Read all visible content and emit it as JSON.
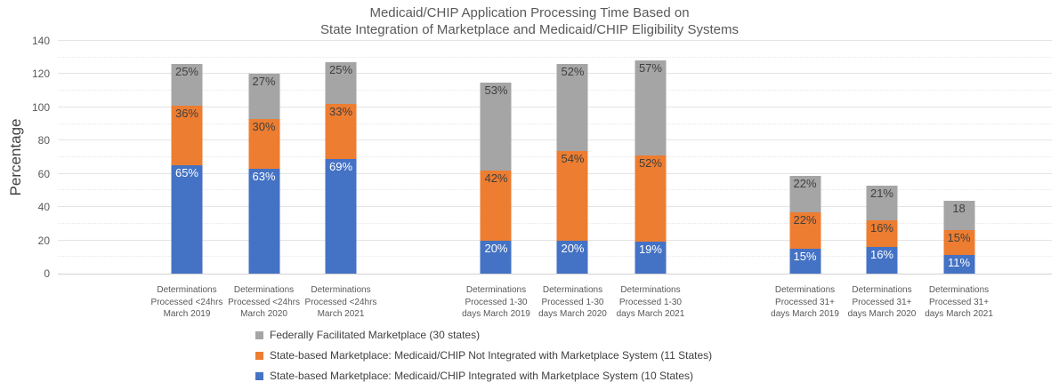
{
  "title": {
    "line1": "Medicaid/CHIP Application Processing Time Based on",
    "line2": "State Integration of Marketplace and Medicaid/CHIP Eligibility Systems"
  },
  "y_axis": {
    "label": "Percentage",
    "ticks": [
      0,
      20,
      40,
      60,
      80,
      100,
      120,
      140
    ]
  },
  "chart_data": {
    "type": "bar",
    "stacked": true,
    "title": "Medicaid/CHIP Application Processing Time Based on State Integration of Marketplace and Medicaid/CHIP Eligibility Systems",
    "ylabel": "Percentage",
    "ylim": [
      0,
      140
    ],
    "grid": {
      "major_step": 20,
      "minor_step": 10,
      "visible": true
    },
    "legend_position": "bottom",
    "categories": [
      [
        "Determinations",
        "Processed <24hrs",
        "March 2019"
      ],
      [
        "Determinations",
        "Processed <24hrs",
        "March 2020"
      ],
      [
        "Determinations",
        "Processed <24hrs",
        "March 2021"
      ],
      [
        "Determinations",
        "Processed 1-30",
        "days March 2019"
      ],
      [
        "Determinations",
        "Processed 1-30",
        "days March 2020"
      ],
      [
        "Determinations",
        "Processed 1-30",
        "days March 2021"
      ],
      [
        "Determinations",
        "Processed 31+",
        "days March 2019"
      ],
      [
        "Determinations",
        "Processed 31+",
        "days March 2020"
      ],
      [
        "Determinations",
        "Processed 31+",
        "days March 2021"
      ]
    ],
    "series": [
      {
        "name": "State-based Marketplace: Medicaid/CHIP Integrated with Marketplace System (10 States)",
        "color": "#4472C4",
        "label_color": "#FFFFFF",
        "values": [
          65,
          63,
          69,
          20,
          20,
          19,
          15,
          16,
          11
        ],
        "labels": [
          "65%",
          "63%",
          "69%",
          "20%",
          "20%",
          "19%",
          "15%",
          "16%",
          "11%"
        ]
      },
      {
        "name": "State-based Marketplace: Medicaid/CHIP Not Integrated with Marketplace System (11 States)",
        "color": "#ED7D31",
        "label_color": "#3F3F3F",
        "values": [
          36,
          30,
          33,
          42,
          54,
          52,
          22,
          16,
          15
        ],
        "labels": [
          "36%",
          "30%",
          "33%",
          "42%",
          "54%",
          "52%",
          "22%",
          "16%",
          "15%"
        ]
      },
      {
        "name": "Federally Facilitated Marketplace (30 states)",
        "color": "#A5A5A5",
        "label_color": "#3F3F3F",
        "values": [
          25,
          27,
          25,
          53,
          52,
          57,
          22,
          21,
          18
        ],
        "labels": [
          "25%",
          "27%",
          "25%",
          "53%",
          "52%",
          "57%",
          "22%",
          "21%",
          "18"
        ]
      }
    ]
  },
  "legend": [
    {
      "label": "Federally Facilitated Marketplace (30 states)",
      "color": "#A5A5A5"
    },
    {
      "label": "State-based Marketplace: Medicaid/CHIP Not Integrated with Marketplace System (11 States)",
      "color": "#ED7D31"
    },
    {
      "label": "State-based Marketplace: Medicaid/CHIP Integrated with Marketplace System (10 States)",
      "color": "#4472C4"
    }
  ],
  "colors": {
    "blue": "#4472C4",
    "orange": "#ED7D31",
    "gray": "#A5A5A5",
    "text_dark": "#404040",
    "text_axis": "#595959"
  }
}
